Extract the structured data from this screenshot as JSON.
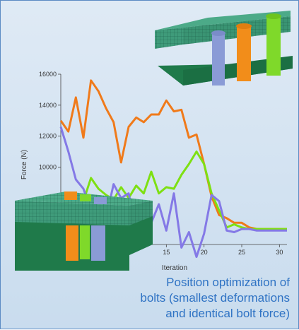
{
  "chart_data": {
    "type": "line",
    "title": "",
    "xlabel": "Iteration",
    "ylabel": "Force (N)",
    "xlim": [
      1,
      31
    ],
    "ylim": [
      5000,
      16000
    ],
    "yticks": [
      6000,
      8000,
      10000,
      12000,
      14000,
      16000
    ],
    "xticks": [
      15,
      20,
      25,
      30
    ],
    "grid": false,
    "series": [
      {
        "color": "#f07a1a",
        "values": [
          13000,
          12300,
          14500,
          11900,
          15600,
          14900,
          13800,
          12900,
          10300,
          12600,
          13200,
          12900,
          13400,
          13400,
          14300,
          13600,
          13700,
          11900,
          12100,
          10200,
          8100,
          6900,
          6700,
          6400,
          6400,
          6100,
          6000,
          6000,
          6000,
          6000,
          6000
        ]
      },
      {
        "color": "#7ee012",
        "values": [
          8000,
          7600,
          7000,
          7800,
          9300,
          8600,
          8200,
          7900,
          8700,
          8000,
          8800,
          8300,
          9700,
          8300,
          8700,
          8600,
          9500,
          10200,
          11000,
          10200,
          8300,
          7200,
          6100,
          6300,
          6100,
          6000,
          6000,
          6000,
          6000,
          6000,
          6000
        ]
      },
      {
        "color": "#8479e6",
        "values": [
          12600,
          11000,
          9200,
          8600,
          7200,
          7500,
          6700,
          8900,
          8000,
          8300,
          6100,
          7800,
          6400,
          7600,
          5900,
          8300,
          4800,
          5800,
          4200,
          5700,
          8200,
          7800,
          5900,
          5800,
          6000,
          6000,
          5900,
          5900,
          5900,
          5900,
          5900
        ]
      }
    ]
  },
  "caption": {
    "line1": "Position optimization of",
    "line2": "bolts (smallest deformations",
    "line3": "and identical bolt force)"
  },
  "model_colors": {
    "plate": "#3f9b7a",
    "base": "#1f7a4a",
    "bolt_blue": "#8a9bd6",
    "bolt_orange": "#f28d1a",
    "bolt_green": "#7fd92a"
  }
}
